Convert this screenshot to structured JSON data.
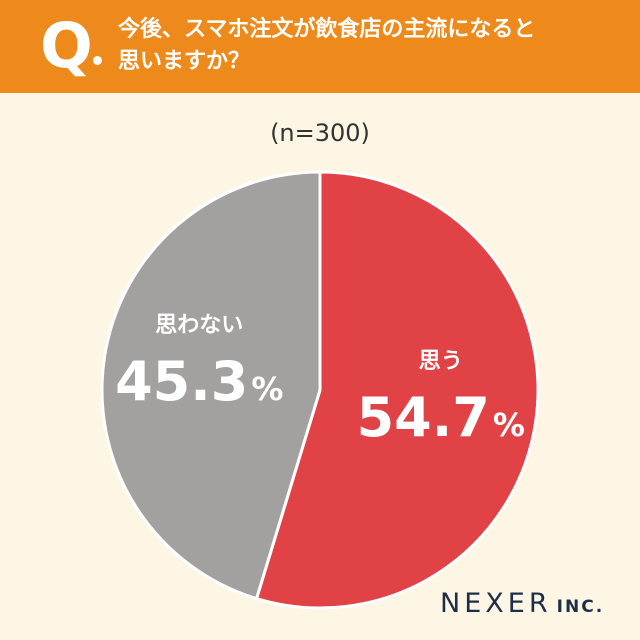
{
  "question": {
    "marker": "Q",
    "line1": "今後、スマホ注文が飲食店の主流になると",
    "line2": "思いますか？"
  },
  "sample_size": "(n=300)",
  "brand": {
    "main": "NEXER",
    "sub": "INC."
  },
  "colors": {
    "header": "#ee8a1c",
    "background": "#fdf6e4",
    "yes": "#e04245",
    "no": "#a3a1a0"
  },
  "chart_data": {
    "type": "pie",
    "categories": [
      "思う",
      "思わない"
    ],
    "values": [
      54.7,
      45.3
    ],
    "unit": "%",
    "value_labels": [
      "54.7",
      "45.3"
    ],
    "start": "12 o'clock",
    "direction": "clockwise"
  }
}
